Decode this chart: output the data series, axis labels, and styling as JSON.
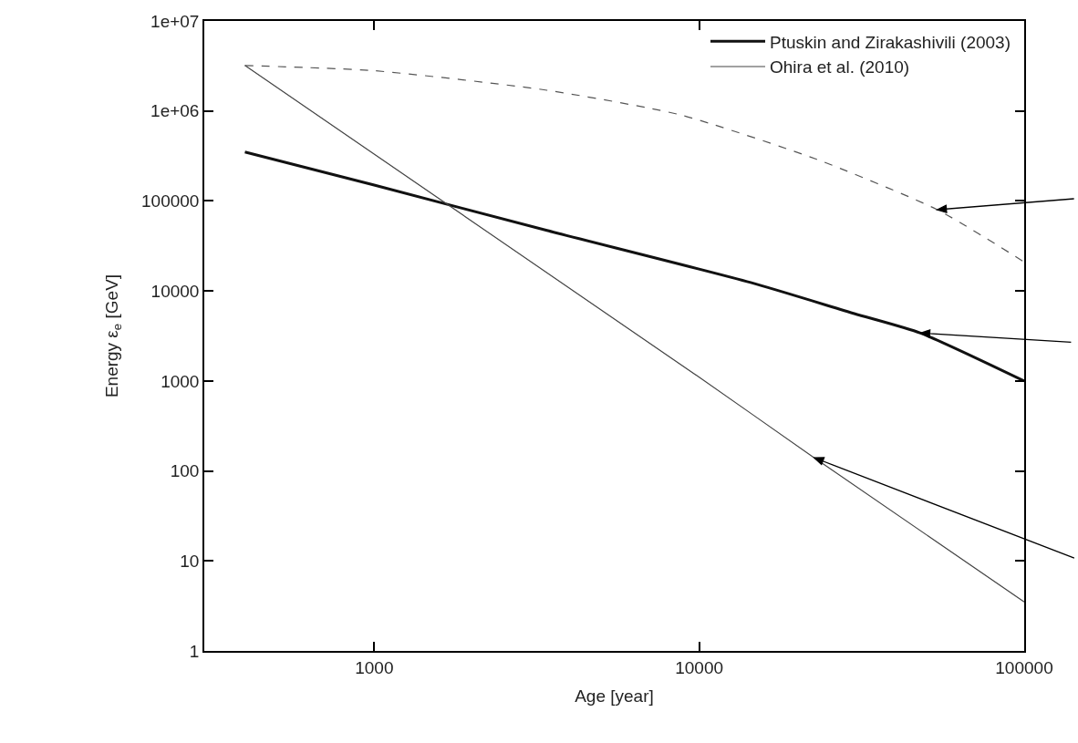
{
  "chart_data": {
    "type": "line",
    "xlabel": "Age [year]",
    "ylabel": "Energy ε$_{e}$ [GeV]",
    "log": "xy",
    "xlim": [
      300,
      100000
    ],
    "xticks": [
      1000,
      10000,
      100000
    ],
    "ylim": [
      1,
      10000000
    ],
    "yticks": [
      1,
      10,
      100,
      1000,
      10000,
      100000,
      {
        "value": 1000000,
        "label": "1e+06"
      },
      {
        "value": 10000000,
        "label": "1e+07"
      }
    ],
    "legend": "top right",
    "series": [
      {
        "name": "Ptuskin and Zirakashivili (2003)",
        "color": "#111111",
        "x": [
          400,
          1000,
          3400,
          14400,
          30000,
          48000,
          100000
        ],
        "values": [
          350000,
          150000,
          47000,
          12400,
          5600,
          3400,
          1000
        ]
      },
      {
        "name": "Ohira et al. (2010)",
        "color": "#444444",
        "x": [
          400,
          10000,
          22600,
          100000
        ],
        "values": [
          3200000,
          1100,
          140,
          3.5
        ]
      },
      {
        "color": "#555555",
        "line_style": "dashed",
        "x": [
          400,
          1000,
          3400,
          8800,
          23000,
          54000,
          100000
        ],
        "values": [
          3200000,
          2800000,
          1700000,
          900000,
          290000,
          80000,
          21000
        ]
      }
    ]
  }
}
